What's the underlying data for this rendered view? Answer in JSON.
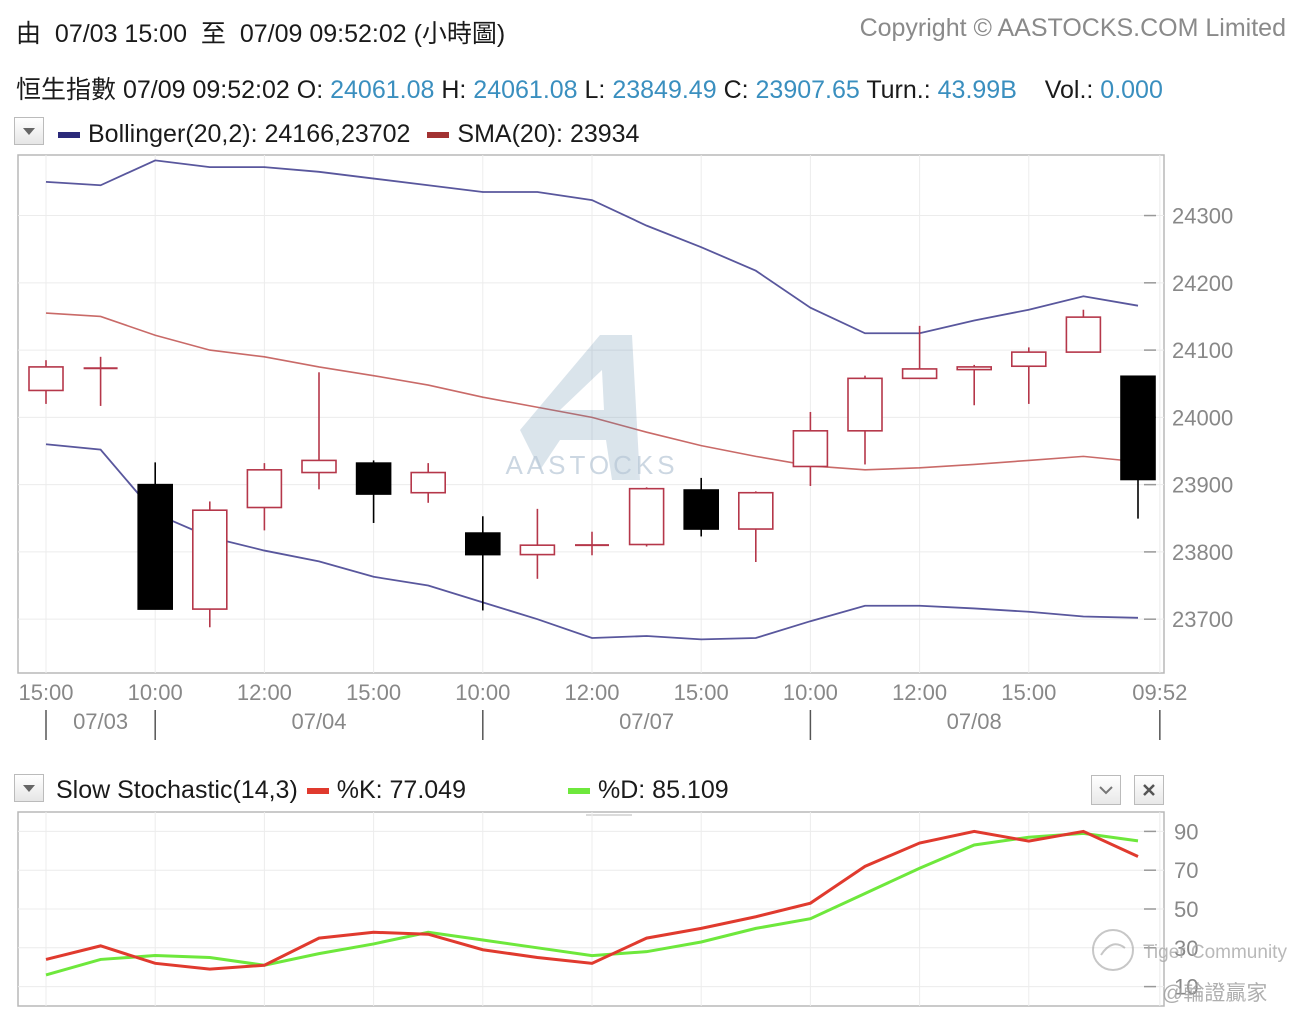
{
  "header": {
    "from_label": "由",
    "from_value": "07/03 15:00",
    "to_label": "至",
    "to_value": "07/09 09:52:02",
    "chart_kind": "(小時圖)",
    "copyright": "Copyright © AASTOCKS.COM Limited"
  },
  "quote": {
    "name": "恒生指數",
    "time": "07/09 09:52:02",
    "open_label": "O:",
    "open": "24061.08",
    "high_label": "H:",
    "high": "24061.08",
    "low_label": "L:",
    "low": "23849.49",
    "close_label": "C:",
    "close": "23907.65",
    "turnover_label": "Turn.:",
    "turnover": "43.99B",
    "volume_label": "Vol.:",
    "volume": "0.000"
  },
  "main_legend": {
    "bollinger": "Bollinger(20,2): 24166,23702",
    "sma": "SMA(20): 23934"
  },
  "stoch_legend": {
    "title": "Slow Stochastic(14,3)",
    "k": "%K: 77.049",
    "d": "%D: 85.109"
  },
  "watermark": {
    "logo_text": "AASTOCKS",
    "community": "Tiger Community",
    "handle": "@輪證贏家"
  },
  "colors": {
    "bollinger": "#3c3a8c",
    "sma": "#c0504d",
    "up_candle": "#b5374a",
    "down_candle": "#000000",
    "stoch_k": "#e03a2e",
    "stoch_d": "#6ee83c",
    "value_text": "#3a8fbf"
  },
  "chart_data": [
    {
      "type": "candlestick",
      "title": "",
      "ylim": [
        23620,
        24390
      ],
      "y_ticks": [
        23700,
        23800,
        23900,
        24000,
        24100,
        24200,
        24300
      ],
      "x_tick_labels": [
        "15:00",
        "10:00",
        "12:00",
        "15:00",
        "10:00",
        "12:00",
        "15:00",
        "10:00",
        "12:00",
        "15:00",
        "09:52"
      ],
      "x_tick_index": [
        0,
        2,
        4,
        6,
        8,
        10,
        12,
        14,
        16,
        18,
        20.4
      ],
      "date_labels": [
        {
          "label": "07/03",
          "index": 1
        },
        {
          "label": "07/04",
          "index": 5
        },
        {
          "label": "07/07",
          "index": 11
        },
        {
          "label": "07/08",
          "index": 17
        }
      ],
      "date_separators": [
        0,
        2,
        8,
        14,
        20.4
      ],
      "candles": [
        {
          "o": 24040,
          "h": 24085,
          "l": 24020,
          "c": 24075
        },
        {
          "o": 24073,
          "h": 24090,
          "l": 24017,
          "c": 24073
        },
        {
          "o": 23900,
          "h": 23933,
          "l": 23715,
          "c": 23715
        },
        {
          "o": 23715,
          "h": 23875,
          "l": 23688,
          "c": 23862
        },
        {
          "o": 23866,
          "h": 23932,
          "l": 23832,
          "c": 23922
        },
        {
          "o": 23918,
          "h": 24067,
          "l": 23893,
          "c": 23936
        },
        {
          "o": 23932,
          "h": 23936,
          "l": 23843,
          "c": 23886
        },
        {
          "o": 23888,
          "h": 23932,
          "l": 23873,
          "c": 23918
        },
        {
          "o": 23828,
          "h": 23853,
          "l": 23713,
          "c": 23796
        },
        {
          "o": 23796,
          "h": 23864,
          "l": 23760,
          "c": 23810
        },
        {
          "o": 23810,
          "h": 23830,
          "l": 23795,
          "c": 23810
        },
        {
          "o": 23811,
          "h": 23896,
          "l": 23808,
          "c": 23894
        },
        {
          "o": 23892,
          "h": 23910,
          "l": 23823,
          "c": 23834
        },
        {
          "o": 23834,
          "h": 23890,
          "l": 23785,
          "c": 23888
        },
        {
          "o": 23927,
          "h": 24008,
          "l": 23898,
          "c": 23980
        },
        {
          "o": 23980,
          "h": 24062,
          "l": 23930,
          "c": 24058
        },
        {
          "o": 24058,
          "h": 24136,
          "l": 24058,
          "c": 24072
        },
        {
          "o": 24071,
          "h": 24078,
          "l": 24018,
          "c": 24075
        },
        {
          "o": 24076,
          "h": 24104,
          "l": 24020,
          "c": 24097
        },
        {
          "o": 24097,
          "h": 24160,
          "l": 24097,
          "c": 24149
        },
        {
          "o": 24061.08,
          "h": 24061.08,
          "l": 23849.49,
          "c": 23907.65
        }
      ],
      "series": [
        {
          "name": "Bollinger(20,2)",
          "kind": "upper",
          "values": [
            24350,
            24345,
            24382,
            24372,
            24372,
            24365,
            24355,
            24345,
            24335,
            24335,
            24323,
            24285,
            24253,
            24218,
            24163,
            24125,
            24125,
            24144,
            24160,
            24180,
            24166
          ]
        },
        {
          "name": "Bollinger(20,2)",
          "kind": "lower",
          "values": [
            23960,
            23952,
            23857,
            23822,
            23802,
            23786,
            23763,
            23750,
            23725,
            23700,
            23672,
            23675,
            23670,
            23672,
            23697,
            23720,
            23720,
            23716,
            23711,
            23704,
            23702
          ]
        },
        {
          "name": "SMA(20)",
          "values": [
            24155,
            24150,
            24122,
            24100,
            24090,
            24075,
            24062,
            24048,
            24030,
            24015,
            24000,
            23978,
            23958,
            23942,
            23928,
            23922,
            23925,
            23930,
            23936,
            23942,
            23934
          ]
        }
      ]
    },
    {
      "type": "line",
      "title": "Slow Stochastic(14,3)",
      "ylim": [
        0,
        100
      ],
      "y_ticks": [
        10,
        30,
        50,
        70,
        90
      ],
      "series": [
        {
          "name": "%K",
          "values": [
            24,
            31,
            22,
            19,
            21,
            35,
            38,
            37,
            29,
            25,
            22,
            35,
            40,
            46,
            53,
            72,
            84,
            90,
            85,
            90,
            77.049
          ]
        },
        {
          "name": "%D",
          "values": [
            16,
            24,
            26,
            25,
            21,
            27,
            32,
            38,
            34,
            30,
            26,
            28,
            33,
            40,
            45,
            58,
            71,
            83,
            87,
            89,
            85.109
          ]
        }
      ]
    }
  ]
}
